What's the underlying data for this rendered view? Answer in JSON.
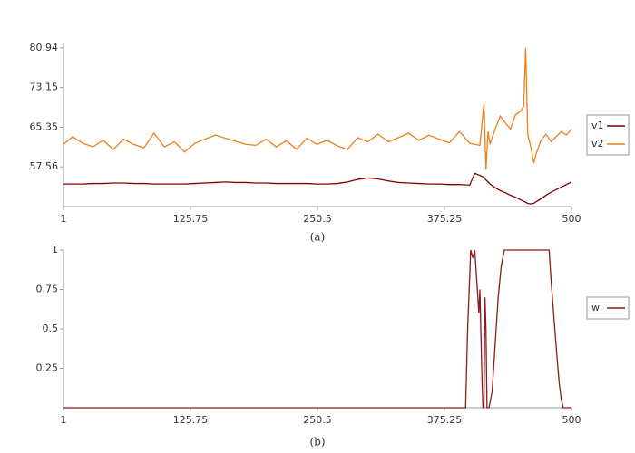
{
  "chart_data": [
    {
      "type": "line",
      "xlabel": "(a)",
      "legend": "right",
      "grid": false,
      "xlim": [
        1,
        500
      ],
      "xticks": [
        1,
        125.75,
        250.5,
        375.25,
        500
      ],
      "ylim": [
        49.77,
        81.8
      ],
      "yticks": [
        57.56,
        65.35,
        73.15,
        80.94
      ],
      "x": [
        1,
        10,
        20,
        30,
        40,
        50,
        60,
        70,
        80,
        90,
        100,
        110,
        120,
        130,
        140,
        150,
        160,
        170,
        180,
        190,
        200,
        210,
        220,
        230,
        240,
        250,
        260,
        270,
        280,
        290,
        300,
        310,
        320,
        330,
        340,
        350,
        360,
        370,
        380,
        390,
        400,
        405,
        410,
        414,
        416,
        418,
        420,
        425,
        430,
        435,
        440,
        445,
        450,
        453,
        455,
        457,
        460,
        463,
        465,
        470,
        475,
        480,
        485,
        490,
        495,
        500
      ],
      "series": [
        {
          "name": "v1",
          "color": "#800000",
          "values": [
            54.2,
            54.2,
            54.2,
            54.3,
            54.3,
            54.4,
            54.4,
            54.3,
            54.3,
            54.2,
            54.2,
            54.2,
            54.2,
            54.3,
            54.4,
            54.5,
            54.6,
            54.5,
            54.5,
            54.4,
            54.4,
            54.3,
            54.3,
            54.3,
            54.3,
            54.2,
            54.2,
            54.3,
            54.6,
            55.1,
            55.4,
            55.2,
            54.8,
            54.5,
            54.4,
            54.3,
            54.2,
            54.2,
            54.1,
            54.1,
            54.0,
            56.3,
            55.9,
            55.5,
            55.0,
            54.6,
            54.2,
            53.5,
            52.9,
            52.5,
            52.0,
            51.6,
            51.1,
            50.8,
            50.6,
            50.4,
            50.3,
            50.4,
            50.7,
            51.3,
            52.0,
            52.6,
            53.1,
            53.6,
            54.1,
            54.6
          ]
        },
        {
          "name": "v2",
          "color": "#f07f1a",
          "values": [
            62.0,
            63.5,
            62.2,
            61.5,
            62.8,
            61.0,
            63.0,
            62.0,
            61.3,
            64.2,
            61.5,
            62.5,
            60.5,
            62.2,
            63.0,
            63.8,
            63.2,
            62.6,
            62.0,
            61.8,
            63.0,
            61.5,
            62.7,
            61.0,
            63.2,
            62.0,
            62.8,
            61.7,
            61.0,
            63.3,
            62.5,
            64.0,
            62.5,
            63.3,
            64.2,
            62.8,
            63.8,
            63.0,
            62.3,
            64.5,
            62.2,
            62.0,
            61.8,
            70.0,
            57.0,
            64.5,
            62.0,
            65.0,
            67.5,
            66.2,
            65.0,
            67.8,
            68.5,
            69.5,
            80.94,
            64.0,
            61.5,
            58.3,
            60.0,
            62.8,
            64.0,
            62.5,
            63.5,
            64.5,
            63.8,
            65.0
          ]
        }
      ]
    },
    {
      "type": "line",
      "xlabel": "(b)",
      "legend": "right",
      "grid": false,
      "xlim": [
        1,
        500
      ],
      "xticks": [
        1,
        125.75,
        250.5,
        375.25,
        500
      ],
      "ylim": [
        0,
        1
      ],
      "yticks": [
        0.25,
        0.5,
        0.75,
        1
      ],
      "x": [
        1,
        100,
        200,
        300,
        396,
        398,
        401,
        403,
        405,
        407,
        409,
        410,
        412,
        413,
        414,
        415,
        416,
        417,
        419,
        422,
        425,
        428,
        431,
        434,
        437,
        440,
        450,
        460,
        470,
        478,
        480,
        483,
        486,
        488,
        490,
        492,
        500
      ],
      "series": [
        {
          "name": "w",
          "color": "#8b1a1a",
          "values": [
            0,
            0,
            0,
            0,
            0,
            0.5,
            1,
            0.95,
            1,
            0.8,
            0.6,
            0.75,
            0.2,
            0,
            0,
            0.7,
            0.5,
            0,
            0,
            0.1,
            0.4,
            0.7,
            0.9,
            1,
            1,
            1,
            1,
            1,
            1,
            1,
            0.8,
            0.55,
            0.3,
            0.15,
            0.05,
            0,
            0
          ]
        }
      ]
    }
  ]
}
